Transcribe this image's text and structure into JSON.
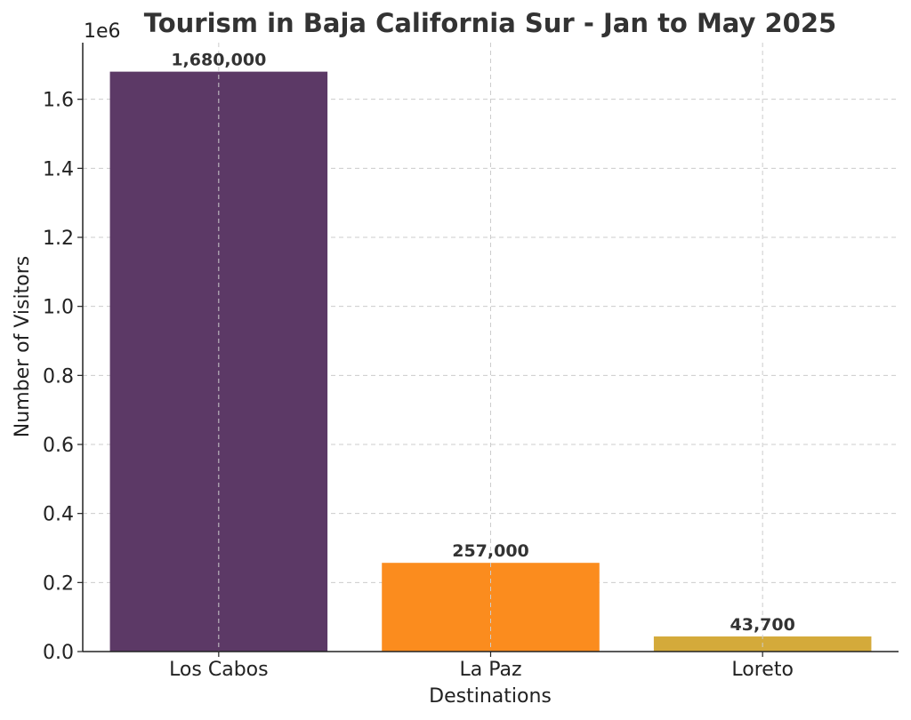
{
  "chart_data": {
    "type": "bar",
    "title": "Tourism in Baja California Sur - Jan to May 2025",
    "xlabel": "Destinations",
    "ylabel": "Number of Visitors",
    "y_offset_label": "1e6",
    "categories": [
      "Los Cabos",
      "La Paz",
      "Loreto"
    ],
    "values": [
      1680000,
      257000,
      43700
    ],
    "data_labels": [
      "1,680,000",
      "257,000",
      "43,700"
    ],
    "colors": [
      "#5c3966",
      "#fb8c1e",
      "#d4aa3a"
    ],
    "ylim": [
      0,
      1764000
    ],
    "yticks": [
      0,
      200000,
      400000,
      600000,
      800000,
      1000000,
      1200000,
      1400000,
      1600000
    ],
    "ytick_labels": [
      "0.0",
      "0.2",
      "0.4",
      "0.6",
      "0.8",
      "1.0",
      "1.2",
      "1.4",
      "1.6"
    ],
    "grid": true
  }
}
